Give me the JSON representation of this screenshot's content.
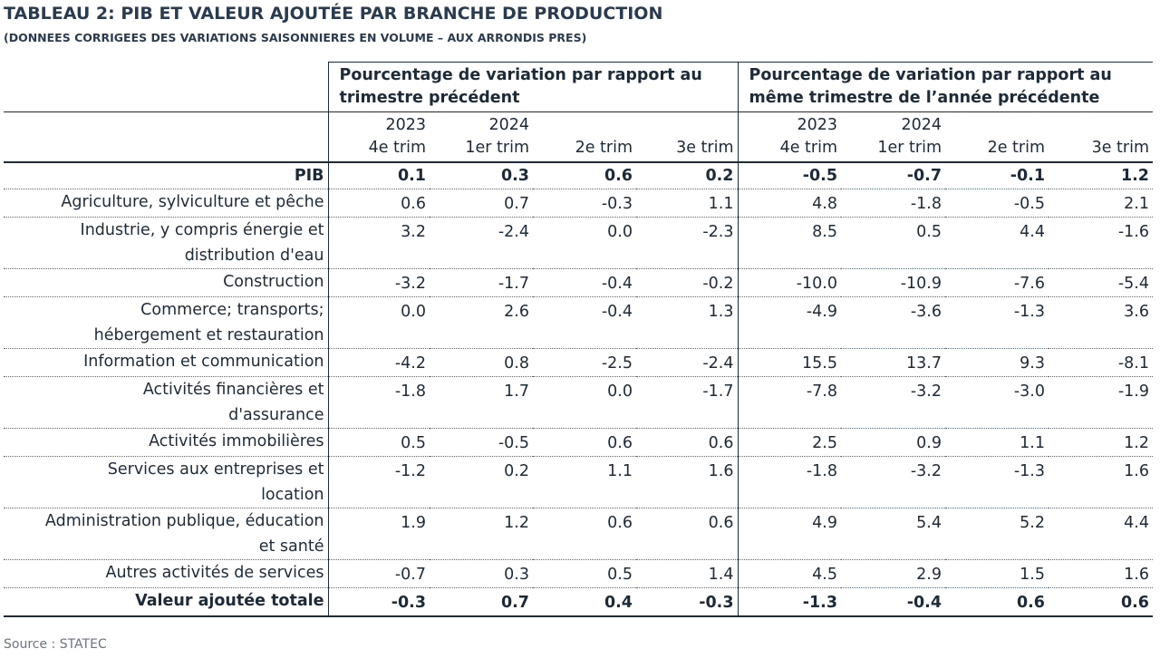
{
  "title": "TABLEAU 2: PIB ET VALEUR AJOUTÉE PAR BRANCHE DE PRODUCTION",
  "subtitle": "(DONNEES CORRIGEES DES VARIATIONS SAISONNIERES EN VOLUME – AUX ARRONDIS PRES)",
  "groups": {
    "a_line1": "Pourcentage de variation par rapport au",
    "a_line2": "trimestre précédent",
    "b_line1": "Pourcentage de variation par rapport au",
    "b_line2": "même trimestre de l’année précédente"
  },
  "years": [
    "2023",
    "2024",
    "",
    "",
    "2023",
    "2024",
    "",
    ""
  ],
  "quarters": [
    "4e trim",
    "1er trim",
    "2e trim",
    "3e trim",
    "4e trim",
    "1er trim",
    "2e trim",
    "3e trim"
  ],
  "rows": [
    {
      "label1": "PIB",
      "label2": "",
      "values": [
        "0.1",
        "0.3",
        "0.6",
        "0.2",
        "-0.5",
        "-0.7",
        "-0.1",
        "1.2"
      ]
    },
    {
      "label1": "Agriculture, sylviculture et pêche",
      "label2": "",
      "values": [
        "0.6",
        "0.7",
        "-0.3",
        "1.1",
        "4.8",
        "-1.8",
        "-0.5",
        "2.1"
      ]
    },
    {
      "label1": "Industrie, y compris énergie et",
      "label2": "distribution d'eau",
      "values": [
        "3.2",
        "-2.4",
        "0.0",
        "-2.3",
        "8.5",
        "0.5",
        "4.4",
        "-1.6"
      ]
    },
    {
      "label1": "Construction",
      "label2": "",
      "values": [
        "-3.2",
        "-1.7",
        "-0.4",
        "-0.2",
        "-10.0",
        "-10.9",
        "-7.6",
        "-5.4"
      ]
    },
    {
      "label1": "Commerce; transports;",
      "label2": "hébergement et restauration",
      "values": [
        "0.0",
        "2.6",
        "-0.4",
        "1.3",
        "-4.9",
        "-3.6",
        "-1.3",
        "3.6"
      ]
    },
    {
      "label1": "Information et communication",
      "label2": "",
      "values": [
        "-4.2",
        "0.8",
        "-2.5",
        "-2.4",
        "15.5",
        "13.7",
        "9.3",
        "-8.1"
      ]
    },
    {
      "label1": "Activités financières et",
      "label2": "d'assurance",
      "values": [
        "-1.8",
        "1.7",
        "0.0",
        "-1.7",
        "-7.8",
        "-3.2",
        "-3.0",
        "-1.9"
      ]
    },
    {
      "label1": "Activités immobilières",
      "label2": "",
      "values": [
        "0.5",
        "-0.5",
        "0.6",
        "0.6",
        "2.5",
        "0.9",
        "1.1",
        "1.2"
      ]
    },
    {
      "label1": "Services aux entreprises et",
      "label2": "location",
      "values": [
        "-1.2",
        "0.2",
        "1.1",
        "1.6",
        "-1.8",
        "-3.2",
        "-1.3",
        "1.6"
      ]
    },
    {
      "label1": "Administration publique, éducation",
      "label2": "et santé",
      "values": [
        "1.9",
        "1.2",
        "0.6",
        "0.6",
        "4.9",
        "5.4",
        "5.2",
        "4.4"
      ]
    },
    {
      "label1": "Autres activités de services",
      "label2": "",
      "values": [
        "-0.7",
        "0.3",
        "0.5",
        "1.4",
        "4.5",
        "2.9",
        "1.5",
        "1.6"
      ]
    },
    {
      "label1": "Valeur ajoutée totale",
      "label2": "",
      "values": [
        "-0.3",
        "0.7",
        "0.4",
        "-0.3",
        "-1.3",
        "-0.4",
        "0.6",
        "0.6"
      ]
    }
  ],
  "source": "Source : STATEC"
}
